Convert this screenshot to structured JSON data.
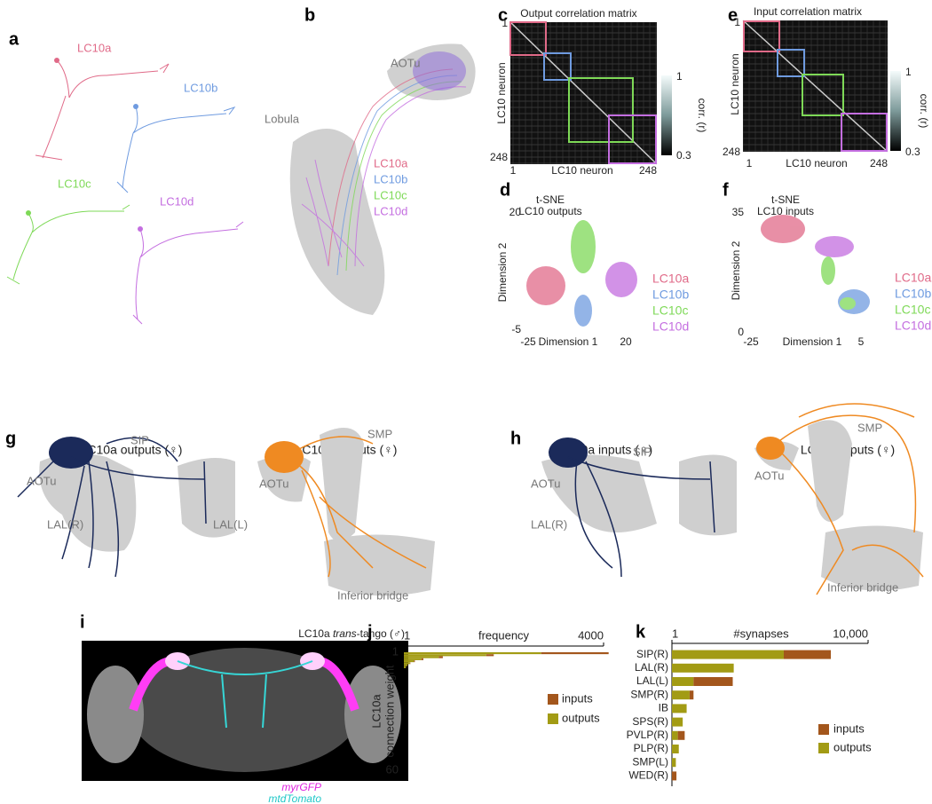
{
  "panels": {
    "a": {
      "label": "a",
      "neurons": [
        "LC10a",
        "LC10b",
        "LC10c",
        "LC10d"
      ]
    },
    "b": {
      "label": "b",
      "regions": [
        "AOTu",
        "Lobula"
      ],
      "legend": [
        "LC10a",
        "LC10b",
        "LC10c",
        "LC10d"
      ]
    },
    "c": {
      "label": "c",
      "title": "Output correlation matrix",
      "ylabel": "LC10 neuron",
      "xlabel": "LC10 neuron",
      "ticks": [
        1,
        248
      ],
      "colorbar": {
        "label": "corr. (r)",
        "ticks": [
          1,
          0.3
        ]
      }
    },
    "e": {
      "label": "e",
      "title": "Input correlation matrix",
      "ylabel": "LC10 neuron",
      "xlabel": "LC10 neuron",
      "ticks": [
        1,
        248
      ],
      "colorbar": {
        "label": "corr. (r)",
        "ticks": [
          1,
          0.3
        ]
      }
    },
    "g": {
      "label": "g",
      "titles": [
        "LC10a outputs (♀)",
        "LC10a outputs (♀)"
      ],
      "regions": [
        "SIP",
        "AOTu",
        "LAL(R)",
        "LAL(L)",
        "SMP",
        "AOTu",
        "Inferior bridge"
      ]
    },
    "h": {
      "label": "h",
      "titles": [
        "LC10a inputs (♀)",
        "LC10a inputs (♀)"
      ],
      "regions": [
        "SIP",
        "AOTu",
        "LAL(R)",
        "SMP",
        "AOTu",
        "Inferior bridge"
      ]
    },
    "i": {
      "label": "i",
      "title": [
        "LC10a ",
        "trans",
        "-tango (♂)"
      ],
      "channels": [
        "myrGFP",
        "mtdTomato"
      ]
    }
  },
  "chart_data": [
    {
      "type": "scatter",
      "label": "d",
      "title": [
        "t-SNE",
        "LC10 outputs"
      ],
      "xlabel": "Dimension 1",
      "ylabel": "Dimension 2",
      "xlim": [
        -25,
        20
      ],
      "ylim": [
        -5,
        20
      ],
      "xticks": [
        -25,
        20
      ],
      "yticks": [
        -5,
        20
      ],
      "series": [
        {
          "name": "LC10a",
          "color": "#e06a88"
        },
        {
          "name": "LC10b",
          "color": "#6f9be0"
        },
        {
          "name": "LC10c",
          "color": "#7ed957"
        },
        {
          "name": "LC10d",
          "color": "#c46ee0"
        }
      ]
    },
    {
      "type": "scatter",
      "label": "f",
      "title": [
        "t-SNE",
        "LC10 inputs"
      ],
      "xlabel": "Dimension 1",
      "ylabel": "Dimension 2",
      "xlim": [
        -25,
        5
      ],
      "ylim": [
        0,
        35
      ],
      "xticks": [
        -25,
        5
      ],
      "yticks": [
        0,
        35
      ],
      "series": [
        {
          "name": "LC10a",
          "color": "#e06a88"
        },
        {
          "name": "LC10b",
          "color": "#6f9be0"
        },
        {
          "name": "LC10c",
          "color": "#7ed957"
        },
        {
          "name": "LC10d",
          "color": "#c46ee0"
        }
      ]
    },
    {
      "type": "hbar",
      "label": "j",
      "xlabel": "frequency",
      "ylabel": [
        "LC10a",
        "connection weight"
      ],
      "xlim": [
        1,
        4000
      ],
      "xticks": [
        1,
        4000
      ],
      "ylim": [
        1,
        60
      ],
      "yticks": [
        1,
        60
      ],
      "y": [
        1,
        2,
        3,
        4,
        5,
        6,
        7,
        8
      ],
      "series": [
        {
          "name": "inputs",
          "color": "#a3561c",
          "values": [
            1350,
            150,
            80,
            40,
            20,
            10,
            5,
            3
          ]
        },
        {
          "name": "outputs",
          "color": "#a29b14",
          "values": [
            2750,
            1650,
            700,
            350,
            200,
            120,
            70,
            40
          ]
        }
      ]
    },
    {
      "type": "catbar",
      "label": "k",
      "xlabel": "#synapses",
      "xlim": [
        1,
        10000
      ],
      "xticks": [
        1,
        {
          "value": 10000,
          "label": "10,000"
        }
      ],
      "categories": [
        "SIP(R)",
        "LAL(R)",
        "LAL(L)",
        "SMP(R)",
        "IB",
        "SPS(R)",
        "PVLP(R)",
        "PLP(R)",
        "SMP(L)",
        "WED(R)"
      ],
      "series": [
        {
          "name": "inputs",
          "color": "#a3561c",
          "values": [
            2400,
            0,
            2000,
            200,
            0,
            0,
            350,
            0,
            0,
            230
          ]
        },
        {
          "name": "outputs",
          "color": "#a29b14",
          "values": [
            5700,
            3150,
            1100,
            900,
            750,
            550,
            300,
            350,
            200,
            0
          ]
        }
      ]
    }
  ]
}
